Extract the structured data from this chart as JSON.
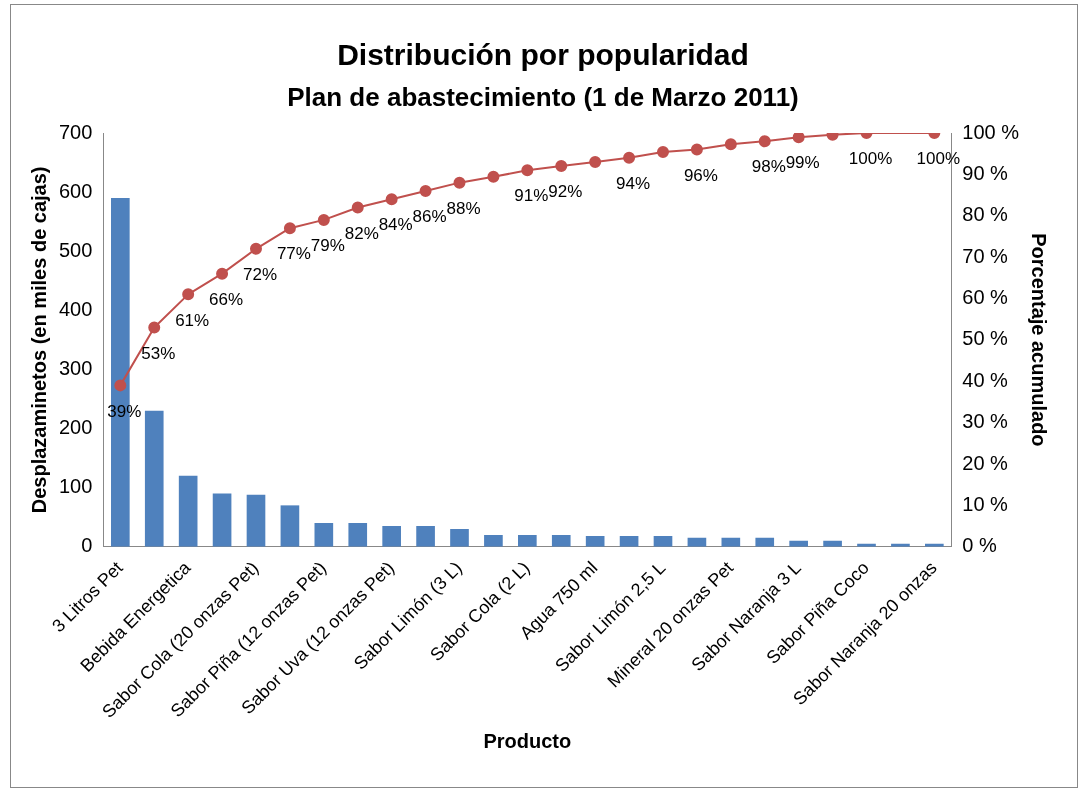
{
  "chart_data": {
    "type": "bar",
    "title": "Distribución por popularidad",
    "subtitle": "Plan de abastecimiento  (1 de Marzo 2011)",
    "xlabel": "Producto",
    "ylabel": "Desplazaminetos (en miles de cajas)",
    "y2label": "Porcentaje acumulado",
    "categories": [
      "3 Litros Pet",
      null,
      "Bebida Energetica",
      null,
      "Sabor Cola (20 onzas Pet)",
      null,
      "Sabor Piña (12 onzas Pet)",
      null,
      "Sabor Uva (12 onzas Pet)",
      null,
      "Sabor Limón (3 L)",
      null,
      "Sabor Cola (2 L)",
      null,
      "Agua 750 ml",
      null,
      "Sabor Limón 2,5 L",
      null,
      "Mineral 20 onzas Pet",
      null,
      "Sabor Naranja 3 L",
      null,
      "Sabor Piña Coco",
      null,
      "Sabor Naranja 20 onzas"
    ],
    "series": [
      {
        "color": "#4f81bd",
        "values": [
          590,
          230,
          120,
          90,
          88,
          70,
          40,
          40,
          35,
          35,
          30,
          20,
          20,
          20,
          18,
          18,
          18,
          15,
          15,
          15,
          10,
          10,
          5,
          5,
          5
        ]
      },
      {
        "type": "line",
        "axis": "y2",
        "color": "#c0504d",
        "marker": "circle",
        "values": [
          39,
          53,
          61,
          66,
          72,
          77,
          79,
          82,
          84,
          86,
          88,
          89.4,
          91,
          92,
          93,
          94,
          95.4,
          96,
          97.3,
          98,
          99,
          99.6,
          100,
          null,
          100
        ],
        "value_labels": [
          "39%",
          "53%",
          "61%",
          "66%",
          "72%",
          "77%",
          "79%",
          "82%",
          "84%",
          "86%",
          "88%",
          null,
          "91%",
          "92%",
          null,
          "94%",
          null,
          "96%",
          null,
          "98%",
          "99%",
          null,
          "100%",
          null,
          "100%"
        ]
      }
    ],
    "ylim": [
      0,
      700
    ],
    "yticks": [
      0,
      100,
      200,
      300,
      400,
      500,
      600,
      700
    ],
    "y2lim": [
      0,
      100
    ],
    "y2ticks": [
      {
        "value": 0,
        "label": "0 %"
      },
      {
        "value": 10,
        "label": "10 %"
      },
      {
        "value": 20,
        "label": "20 %"
      },
      {
        "value": 30,
        "label": "30 %"
      },
      {
        "value": 40,
        "label": "40 %"
      },
      {
        "value": 50,
        "label": "50 %"
      },
      {
        "value": 60,
        "label": "60 %"
      },
      {
        "value": 70,
        "label": "70 %"
      },
      {
        "value": 80,
        "label": "80 %"
      },
      {
        "value": 90,
        "label": "90 %"
      },
      {
        "value": 100,
        "label": "100 %"
      }
    ],
    "grid": false,
    "legend": false
  }
}
